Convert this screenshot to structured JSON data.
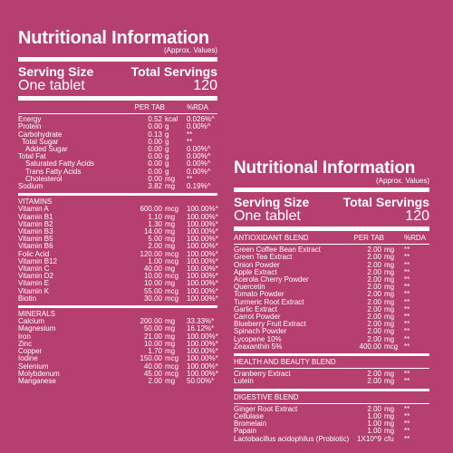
{
  "left": {
    "title": "Nutritional Information",
    "approx": "(Approx. Values)",
    "serving_size_label": "Serving Size",
    "total_servings_label": "Total Servings",
    "serving_size_value": "One tablet",
    "total_servings_value": "120",
    "header": {
      "per_tab": "PER TAB",
      "rda": "%RDA"
    },
    "nutrients": [
      {
        "name": "Energy",
        "value": "0.52",
        "unit": "kcal",
        "rda": "0.026%^",
        "indent": 0
      },
      {
        "name": "Protein",
        "value": "0.00",
        "unit": "g",
        "rda": "0.00%^",
        "indent": 0
      },
      {
        "name": "Carbohydrate",
        "value": "0.13",
        "unit": "g",
        "rda": "**",
        "indent": 0
      },
      {
        "name": "Total Sugar",
        "value": "0.00",
        "unit": "g",
        "rda": "**",
        "indent": 1
      },
      {
        "name": "Added Sugar",
        "value": "0.00",
        "unit": "g",
        "rda": "0.00%^",
        "indent": 2
      },
      {
        "name": "Total Fat",
        "value": "0.00",
        "unit": "g",
        "rda": "0.00%^",
        "indent": 0
      },
      {
        "name": "Saturated Fatty Acids",
        "value": "0.00",
        "unit": "g",
        "rda": "0.00%^",
        "indent": 2
      },
      {
        "name": "Trans Fatty Acids",
        "value": "0.00",
        "unit": "g",
        "rda": "0.00%^",
        "indent": 2
      },
      {
        "name": "Cholesterol",
        "value": "0.00",
        "unit": "mg",
        "rda": "**",
        "indent": 2
      },
      {
        "name": "Sodium",
        "value": "3.82",
        "unit": "mg",
        "rda": "0.19%^",
        "indent": 0
      }
    ],
    "vitamins_label": "VITAMINS",
    "vitamins": [
      {
        "name": "Vitamin A",
        "value": "600.00",
        "unit": "mcg",
        "rda": "100.00%*"
      },
      {
        "name": "Vitamin B1",
        "value": "1.10",
        "unit": "mg",
        "rda": "100.00%*"
      },
      {
        "name": "Vitamin B2",
        "value": "1.30",
        "unit": "mg",
        "rda": "100.00%*"
      },
      {
        "name": "Vitamin B3",
        "value": "14.00",
        "unit": "mg",
        "rda": "100.00%*"
      },
      {
        "name": "Vitamin B5",
        "value": "5.00",
        "unit": "mg",
        "rda": "100.00%*"
      },
      {
        "name": "Vitamin B6",
        "value": "2.00",
        "unit": "mg",
        "rda": "100.00%*"
      },
      {
        "name": "Folic Acid",
        "value": "120.00",
        "unit": "mcg",
        "rda": "100.00%*"
      },
      {
        "name": "Vitamin B12",
        "value": "1.00",
        "unit": "mcg",
        "rda": "100.00%*"
      },
      {
        "name": "Vitamin C",
        "value": "40.00",
        "unit": "mg",
        "rda": "100.00%*"
      },
      {
        "name": "Vitamin D2",
        "value": "10.00",
        "unit": "mcg",
        "rda": "100.00%*"
      },
      {
        "name": "Vitamin E",
        "value": "10.00",
        "unit": "mg",
        "rda": "100.00%*"
      },
      {
        "name": "Vitamin K",
        "value": "55.00",
        "unit": "mcg",
        "rda": "100.00%*"
      },
      {
        "name": "Biotin",
        "value": "30.00",
        "unit": "mcg",
        "rda": "100.00%*"
      }
    ],
    "minerals_label": "MINERALS",
    "minerals": [
      {
        "name": "Calcium",
        "value": "200.00",
        "unit": "mg",
        "rda": "33.33%*"
      },
      {
        "name": "Magnesium",
        "value": "50.00",
        "unit": "mg",
        "rda": "16.12%*"
      },
      {
        "name": "Iron",
        "value": "21.00",
        "unit": "mg",
        "rda": "100.00%*"
      },
      {
        "name": "Zinc",
        "value": "10.00",
        "unit": "mg",
        "rda": "100.00%*"
      },
      {
        "name": "Copper",
        "value": "1.70",
        "unit": "mg",
        "rda": "100.00%*"
      },
      {
        "name": "Iodine",
        "value": "150.00",
        "unit": "mcg",
        "rda": "100.00%*"
      },
      {
        "name": "Selenium",
        "value": "40.00",
        "unit": "mcg",
        "rda": "100.00%*"
      },
      {
        "name": "Molybdenum",
        "value": "45.00",
        "unit": "mcg",
        "rda": "100.00%*"
      },
      {
        "name": "Manganese",
        "value": "2.00",
        "unit": "mg",
        "rda": "50.00%*"
      }
    ]
  },
  "right": {
    "title": "Nutritional Information",
    "approx": "(Approx. Values)",
    "serving_size_label": "Serving Size",
    "total_servings_label": "Total Servings",
    "serving_size_value": "One tablet",
    "total_servings_value": "120",
    "header": {
      "per_tab": "PER TAB",
      "rda": "%RDA"
    },
    "antioxidant_label": "ANTIOXIDANT BLEND",
    "antioxidant": [
      {
        "name": "Green Coffee Bean Extract",
        "value": "2.00",
        "unit": "mg",
        "rda": "**"
      },
      {
        "name": "Green Tea Extract",
        "value": "2.00",
        "unit": "mg",
        "rda": "**"
      },
      {
        "name": "Onion Powder",
        "value": "2.00",
        "unit": "mg",
        "rda": "**"
      },
      {
        "name": "Apple Extract",
        "value": "2.00",
        "unit": "mg",
        "rda": "**"
      },
      {
        "name": "Acerola Cherry Powder",
        "value": "2.00",
        "unit": "mg",
        "rda": "**"
      },
      {
        "name": "Quercetin",
        "value": "2.00",
        "unit": "mg",
        "rda": "**"
      },
      {
        "name": "Tomato Powder",
        "value": "2.00",
        "unit": "mg",
        "rda": "**"
      },
      {
        "name": "Turmeric Root Extract",
        "value": "2.00",
        "unit": "mg",
        "rda": "**"
      },
      {
        "name": "Garlic Extract",
        "value": "2.00",
        "unit": "mg",
        "rda": "**"
      },
      {
        "name": "Carrot Powder",
        "value": "2.00",
        "unit": "mg",
        "rda": "**"
      },
      {
        "name": "Blueberry Fruit Extract",
        "value": "2.00",
        "unit": "mg",
        "rda": "**"
      },
      {
        "name": "Spinach Powder",
        "value": "2.00",
        "unit": "mg",
        "rda": "**"
      },
      {
        "name": "Lycopene 10%",
        "value": "2.00",
        "unit": "mg",
        "rda": "**"
      },
      {
        "name": "Zeaxanthin 5%",
        "value": "400.00",
        "unit": "mcg",
        "rda": "**"
      }
    ],
    "health_label": "HEALTH AND BEAUTY BLEND",
    "health": [
      {
        "name": "Cranberry Extract",
        "value": "2.00",
        "unit": "mg",
        "rda": "**"
      },
      {
        "name": "Lutein",
        "value": "2.00",
        "unit": "mg",
        "rda": "**"
      }
    ],
    "digestive_label": "DIGESTIVE BLEND",
    "digestive": [
      {
        "name": "Ginger Root Extract",
        "value": "2.00",
        "unit": "mg",
        "rda": "**"
      },
      {
        "name": "Cellulase",
        "value": "1.00",
        "unit": "mg",
        "rda": "**"
      },
      {
        "name": "Bromelain",
        "value": "1.00",
        "unit": "mg",
        "rda": "**"
      },
      {
        "name": "Papain",
        "value": "1.00",
        "unit": "mg",
        "rda": "**"
      },
      {
        "name": "Lactobacillus acidophilus (Probiotic)",
        "value": "1X10^9",
        "unit": "cfu",
        "rda": "**"
      }
    ]
  }
}
